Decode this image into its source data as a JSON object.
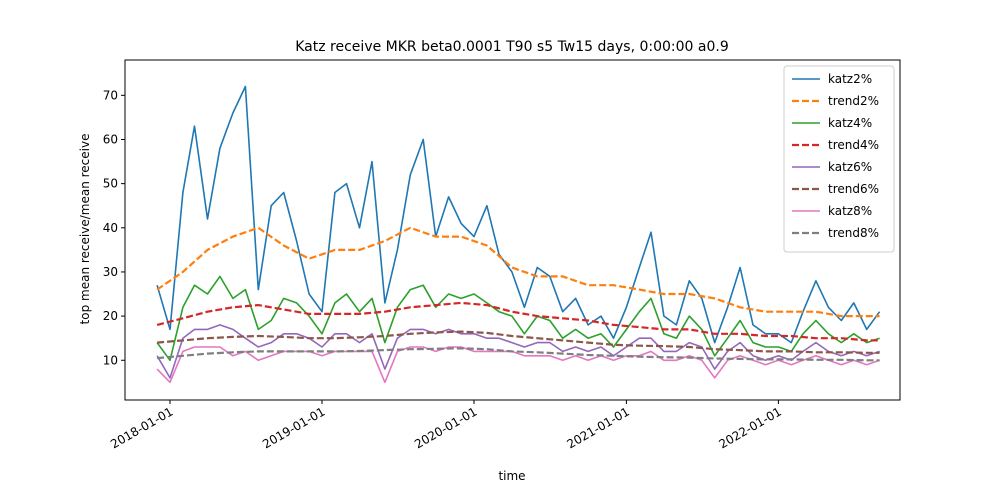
{
  "chart_data": {
    "type": "line",
    "title": "Katz receive MKR beta0.0001 T90 s5 Tw15 days, 0:00:00 a0.9",
    "xlabel": "time",
    "ylabel": "top mean receive/mean receive",
    "xlim": [
      "2017-09-15",
      "2022-10-20"
    ],
    "ylim": [
      1,
      78
    ],
    "yticks": [
      10,
      20,
      30,
      40,
      50,
      60,
      70
    ],
    "xticks": [
      "2018-01-01",
      "2019-01-01",
      "2020-01-01",
      "2021-01-01",
      "2022-01-01"
    ],
    "grid": false,
    "legend_position": "top-right",
    "series": [
      {
        "name": "katz2%",
        "color": "#1f77b4",
        "style": "solid",
        "x": [
          "2017-12-01",
          "2018-01-01",
          "2018-02-01",
          "2018-03-01",
          "2018-04-01",
          "2018-05-01",
          "2018-06-01",
          "2018-07-01",
          "2018-08-01",
          "2018-09-01",
          "2018-10-01",
          "2018-11-01",
          "2018-12-01",
          "2019-01-01",
          "2019-02-01",
          "2019-03-01",
          "2019-04-01",
          "2019-05-01",
          "2019-06-01",
          "2019-07-01",
          "2019-08-01",
          "2019-09-01",
          "2019-10-01",
          "2019-11-01",
          "2019-12-01",
          "2020-01-01",
          "2020-02-01",
          "2020-03-01",
          "2020-04-01",
          "2020-05-01",
          "2020-06-01",
          "2020-07-01",
          "2020-08-01",
          "2020-09-01",
          "2020-10-01",
          "2020-11-01",
          "2020-12-01",
          "2021-01-01",
          "2021-02-01",
          "2021-03-01",
          "2021-04-01",
          "2021-05-01",
          "2021-06-01",
          "2021-07-01",
          "2021-08-01",
          "2021-09-01",
          "2021-10-01",
          "2021-11-01",
          "2021-12-01",
          "2022-01-01",
          "2022-02-01",
          "2022-03-01",
          "2022-04-01",
          "2022-05-01",
          "2022-06-01",
          "2022-07-01",
          "2022-08-01",
          "2022-09-01"
        ],
        "values": [
          27,
          17,
          48,
          63,
          42,
          58,
          66,
          72,
          26,
          45,
          48,
          37,
          25,
          21,
          48,
          50,
          40,
          55,
          23,
          35,
          52,
          60,
          38,
          47,
          41,
          38,
          45,
          34,
          30,
          22,
          31,
          29,
          21,
          24,
          18,
          20,
          15,
          22,
          31,
          39,
          20,
          18,
          28,
          24,
          14,
          22,
          31,
          18,
          16,
          16,
          14,
          21,
          28,
          22,
          19,
          23,
          17,
          21
        ]
      },
      {
        "name": "trend2%",
        "color": "#ff7f0e",
        "style": "dashed",
        "x": [
          "2017-12-01",
          "2018-02-01",
          "2018-04-01",
          "2018-06-01",
          "2018-08-01",
          "2018-10-01",
          "2018-12-01",
          "2019-02-01",
          "2019-04-01",
          "2019-06-01",
          "2019-08-01",
          "2019-10-01",
          "2019-12-01",
          "2020-02-01",
          "2020-04-01",
          "2020-06-01",
          "2020-08-01",
          "2020-10-01",
          "2020-12-01",
          "2021-02-01",
          "2021-04-01",
          "2021-06-01",
          "2021-08-01",
          "2021-10-01",
          "2021-12-01",
          "2022-02-01",
          "2022-04-01",
          "2022-06-01",
          "2022-08-01",
          "2022-09-01"
        ],
        "values": [
          26,
          30,
          35,
          38,
          40,
          36,
          33,
          35,
          35,
          37,
          40,
          38,
          38,
          36,
          31,
          29,
          29,
          27,
          27,
          26,
          25,
          25,
          24,
          22,
          21,
          21,
          21,
          20,
          20,
          20
        ]
      },
      {
        "name": "katz4%",
        "color": "#2ca02c",
        "style": "solid",
        "x": [
          "2017-12-01",
          "2018-01-01",
          "2018-02-01",
          "2018-03-01",
          "2018-04-01",
          "2018-05-01",
          "2018-06-01",
          "2018-07-01",
          "2018-08-01",
          "2018-09-01",
          "2018-10-01",
          "2018-11-01",
          "2018-12-01",
          "2019-01-01",
          "2019-02-01",
          "2019-03-01",
          "2019-04-01",
          "2019-05-01",
          "2019-06-01",
          "2019-07-01",
          "2019-08-01",
          "2019-09-01",
          "2019-10-01",
          "2019-11-01",
          "2019-12-01",
          "2020-01-01",
          "2020-02-01",
          "2020-03-01",
          "2020-04-01",
          "2020-05-01",
          "2020-06-01",
          "2020-07-01",
          "2020-08-01",
          "2020-09-01",
          "2020-10-01",
          "2020-11-01",
          "2020-12-01",
          "2021-01-01",
          "2021-02-01",
          "2021-03-01",
          "2021-04-01",
          "2021-05-01",
          "2021-06-01",
          "2021-07-01",
          "2021-08-01",
          "2021-09-01",
          "2021-10-01",
          "2021-11-01",
          "2021-12-01",
          "2022-01-01",
          "2022-02-01",
          "2022-03-01",
          "2022-04-01",
          "2022-05-01",
          "2022-06-01",
          "2022-07-01",
          "2022-08-01",
          "2022-09-01"
        ],
        "values": [
          14,
          10,
          22,
          27,
          25,
          29,
          24,
          26,
          17,
          19,
          24,
          23,
          20,
          16,
          23,
          25,
          21,
          24,
          14,
          22,
          26,
          27,
          22,
          25,
          24,
          25,
          23,
          21,
          20,
          16,
          20,
          19,
          15,
          17,
          15,
          16,
          13,
          17,
          21,
          24,
          16,
          15,
          20,
          17,
          11,
          15,
          19,
          14,
          13,
          13,
          12,
          16,
          19,
          16,
          14,
          16,
          14,
          15
        ]
      },
      {
        "name": "trend4%",
        "color": "#d62728",
        "style": "dashed",
        "x": [
          "2017-12-01",
          "2018-02-01",
          "2018-04-01",
          "2018-06-01",
          "2018-08-01",
          "2018-10-01",
          "2018-12-01",
          "2019-02-01",
          "2019-04-01",
          "2019-06-01",
          "2019-08-01",
          "2019-10-01",
          "2019-12-01",
          "2020-02-01",
          "2020-04-01",
          "2020-06-01",
          "2020-08-01",
          "2020-10-01",
          "2020-12-01",
          "2021-02-01",
          "2021-04-01",
          "2021-06-01",
          "2021-08-01",
          "2021-10-01",
          "2021-12-01",
          "2022-02-01",
          "2022-04-01",
          "2022-06-01",
          "2022-08-01",
          "2022-09-01"
        ],
        "values": [
          18,
          19.5,
          21,
          22,
          22.5,
          21.5,
          20.5,
          20.5,
          20.5,
          21,
          22,
          22.5,
          23,
          22.5,
          21,
          20,
          19.5,
          19,
          18,
          17.5,
          17,
          17,
          16,
          16,
          15.5,
          15.5,
          15,
          15,
          14.5,
          14.5
        ]
      },
      {
        "name": "katz6%",
        "color": "#9467bd",
        "style": "solid",
        "x": [
          "2017-12-01",
          "2018-01-01",
          "2018-02-01",
          "2018-03-01",
          "2018-04-01",
          "2018-05-01",
          "2018-06-01",
          "2018-07-01",
          "2018-08-01",
          "2018-09-01",
          "2018-10-01",
          "2018-11-01",
          "2018-12-01",
          "2019-01-01",
          "2019-02-01",
          "2019-03-01",
          "2019-04-01",
          "2019-05-01",
          "2019-06-01",
          "2019-07-01",
          "2019-08-01",
          "2019-09-01",
          "2019-10-01",
          "2019-11-01",
          "2019-12-01",
          "2020-01-01",
          "2020-02-01",
          "2020-03-01",
          "2020-04-01",
          "2020-05-01",
          "2020-06-01",
          "2020-07-01",
          "2020-08-01",
          "2020-09-01",
          "2020-10-01",
          "2020-11-01",
          "2020-12-01",
          "2021-01-01",
          "2021-02-01",
          "2021-03-01",
          "2021-04-01",
          "2021-05-01",
          "2021-06-01",
          "2021-07-01",
          "2021-08-01",
          "2021-09-01",
          "2021-10-01",
          "2021-11-01",
          "2021-12-01",
          "2022-01-01",
          "2022-02-01",
          "2022-03-01",
          "2022-04-01",
          "2022-05-01",
          "2022-06-01",
          "2022-07-01",
          "2022-08-01",
          "2022-09-01"
        ],
        "values": [
          11,
          6,
          15,
          17,
          17,
          18,
          17,
          15,
          13,
          14,
          16,
          16,
          15,
          13,
          16,
          16,
          14,
          16,
          8,
          15,
          17,
          17,
          16,
          17,
          16,
          16,
          15,
          15,
          14,
          13,
          14,
          14,
          12,
          13,
          12,
          13,
          11,
          13,
          15,
          15,
          12,
          12,
          14,
          13,
          8,
          12,
          14,
          11,
          10,
          11,
          10,
          12,
          14,
          12,
          11,
          12,
          11,
          12
        ]
      },
      {
        "name": "trend6%",
        "color": "#8c564b",
        "style": "dashed",
        "x": [
          "2017-12-01",
          "2018-02-01",
          "2018-04-01",
          "2018-06-01",
          "2018-08-01",
          "2018-10-01",
          "2018-12-01",
          "2019-02-01",
          "2019-04-01",
          "2019-06-01",
          "2019-08-01",
          "2019-10-01",
          "2019-12-01",
          "2020-02-01",
          "2020-04-01",
          "2020-06-01",
          "2020-08-01",
          "2020-10-01",
          "2020-12-01",
          "2021-02-01",
          "2021-04-01",
          "2021-06-01",
          "2021-08-01",
          "2021-10-01",
          "2021-12-01",
          "2022-02-01",
          "2022-04-01",
          "2022-06-01",
          "2022-08-01",
          "2022-09-01"
        ],
        "values": [
          14,
          14.5,
          15,
          15.3,
          15.5,
          15.3,
          15,
          15,
          15.2,
          15.5,
          16,
          16.3,
          16.5,
          16.2,
          15.5,
          15,
          14.5,
          14,
          13.5,
          13.3,
          13.2,
          13,
          12.5,
          12.3,
          12,
          12,
          11.8,
          11.8,
          11.7,
          11.7
        ]
      },
      {
        "name": "katz8%",
        "color": "#e377c2",
        "style": "solid",
        "x": [
          "2017-12-01",
          "2018-01-01",
          "2018-02-01",
          "2018-03-01",
          "2018-04-01",
          "2018-05-01",
          "2018-06-01",
          "2018-07-01",
          "2018-08-01",
          "2018-09-01",
          "2018-10-01",
          "2018-11-01",
          "2018-12-01",
          "2019-01-01",
          "2019-02-01",
          "2019-03-01",
          "2019-04-01",
          "2019-05-01",
          "2019-06-01",
          "2019-07-01",
          "2019-08-01",
          "2019-09-01",
          "2019-10-01",
          "2019-11-01",
          "2019-12-01",
          "2020-01-01",
          "2020-02-01",
          "2020-03-01",
          "2020-04-01",
          "2020-05-01",
          "2020-06-01",
          "2020-07-01",
          "2020-08-01",
          "2020-09-01",
          "2020-10-01",
          "2020-11-01",
          "2020-12-01",
          "2021-01-01",
          "2021-02-01",
          "2021-03-01",
          "2021-04-01",
          "2021-05-01",
          "2021-06-01",
          "2021-07-01",
          "2021-08-01",
          "2021-09-01",
          "2021-10-01",
          "2021-11-01",
          "2021-12-01",
          "2022-01-01",
          "2022-02-01",
          "2022-03-01",
          "2022-04-01",
          "2022-05-01",
          "2022-06-01",
          "2022-07-01",
          "2022-08-01",
          "2022-09-01"
        ],
        "values": [
          8,
          5,
          12,
          13,
          13,
          13,
          11,
          12,
          10,
          11,
          12,
          12,
          12,
          11,
          12,
          12,
          12,
          12,
          5,
          12,
          13,
          13,
          12,
          13,
          13,
          12,
          12,
          12,
          12,
          11,
          11,
          11,
          10,
          11,
          10,
          11,
          10,
          11,
          11,
          12,
          10,
          10,
          11,
          10,
          6,
          10,
          11,
          10,
          9,
          10,
          9,
          10,
          11,
          10,
          9,
          10,
          9,
          10
        ]
      },
      {
        "name": "trend8%",
        "color": "#7f7f7f",
        "style": "dashed",
        "x": [
          "2017-12-01",
          "2018-02-01",
          "2018-04-01",
          "2018-06-01",
          "2018-08-01",
          "2018-10-01",
          "2018-12-01",
          "2019-02-01",
          "2019-04-01",
          "2019-06-01",
          "2019-08-01",
          "2019-10-01",
          "2019-12-01",
          "2020-02-01",
          "2020-04-01",
          "2020-06-01",
          "2020-08-01",
          "2020-10-01",
          "2020-12-01",
          "2021-02-01",
          "2021-04-01",
          "2021-06-01",
          "2021-08-01",
          "2021-10-01",
          "2021-12-01",
          "2022-02-01",
          "2022-04-01",
          "2022-06-01",
          "2022-08-01",
          "2022-09-01"
        ],
        "values": [
          10.5,
          11,
          11.5,
          11.8,
          12,
          12,
          12,
          12,
          12.1,
          12.3,
          12.5,
          12.6,
          12.7,
          12.5,
          12,
          11.8,
          11.5,
          11.2,
          11,
          10.8,
          10.7,
          10.6,
          10.4,
          10.3,
          10.2,
          10.2,
          10.1,
          10.1,
          10,
          10
        ]
      }
    ]
  }
}
